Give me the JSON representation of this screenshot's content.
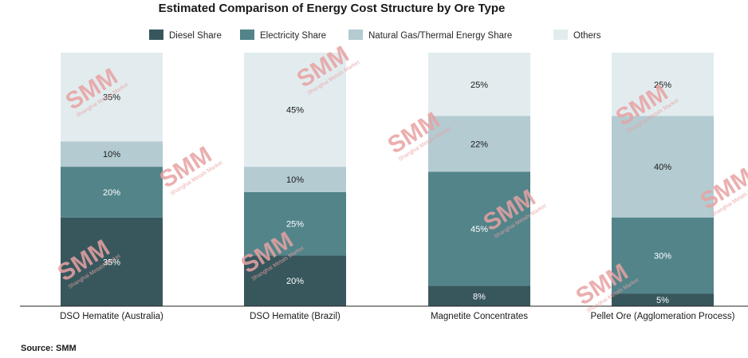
{
  "chart_data": {
    "type": "stacked-bar",
    "title": "Estimated Comparison of Energy Cost Structure by Ore Type",
    "categories": [
      "DSO Hematite (Australia)",
      "DSO Hematite (Brazil)",
      "Magnetite Concentrates",
      "Pellet Ore (Agglomeration Process)"
    ],
    "series": [
      {
        "name": "Diesel Share",
        "color": "#37575d",
        "values": [
          35,
          20,
          8,
          5
        ]
      },
      {
        "name": "Electricity Share",
        "color": "#52848a",
        "values": [
          20,
          25,
          45,
          30
        ]
      },
      {
        "name": "Natural Gas/Thermal Energy Share",
        "color": "#b3cbd1",
        "values": [
          10,
          10,
          22,
          40
        ]
      },
      {
        "name": "Others",
        "color": "#e2ecef",
        "values": [
          35,
          45,
          25,
          25
        ]
      }
    ],
    "value_suffix": "%",
    "ylim": [
      0,
      100
    ],
    "legend_position": "top",
    "grid": false
  },
  "source": "Source: SMM",
  "watermark": {
    "logo": "SMM",
    "tagline": "Shanghai Metals Market"
  }
}
